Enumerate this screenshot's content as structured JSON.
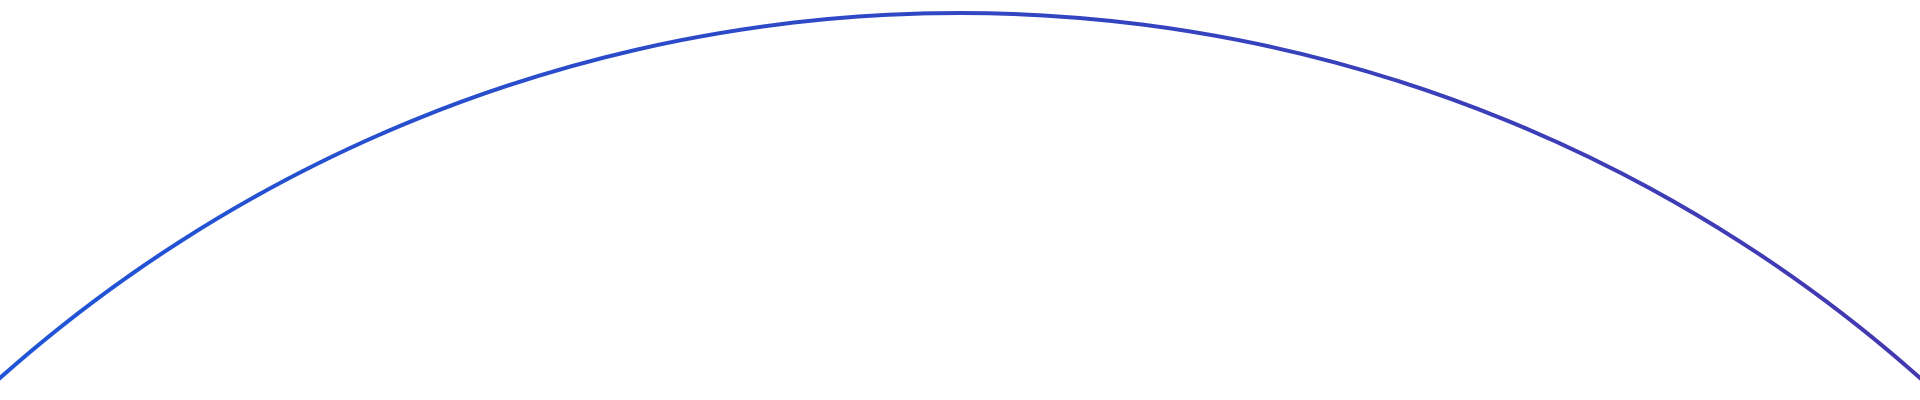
{
  "arc": {
    "color_start": "#1f55d6",
    "color_end": "#4338b0"
  }
}
